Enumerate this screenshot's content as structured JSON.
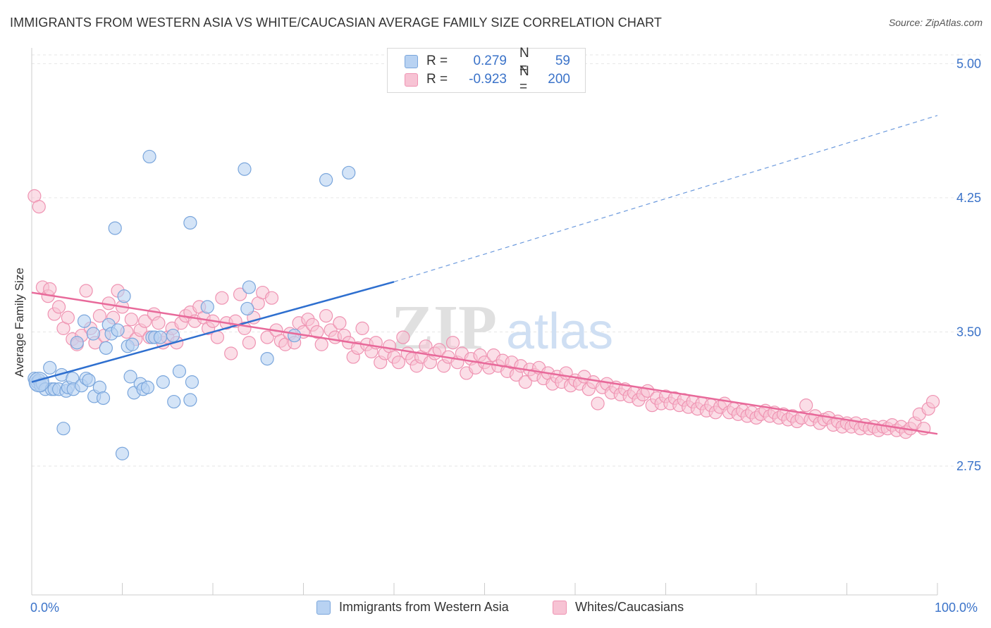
{
  "title": "IMMIGRANTS FROM WESTERN ASIA VS WHITE/CAUCASIAN AVERAGE FAMILY SIZE CORRELATION CHART",
  "source": "Source: ZipAtlas.com",
  "watermark": {
    "zip": "ZIP",
    "atlas": "atlas"
  },
  "legend": {
    "rows": [
      {
        "r_label": "R =",
        "r_value": "0.279",
        "n_label": "N =",
        "n_value": "59"
      },
      {
        "r_label": "R =",
        "r_value": "-0.923",
        "n_label": "N =",
        "n_value": "200"
      }
    ]
  },
  "colors": {
    "blue_fill": "#b8d2f2",
    "blue_stroke": "#7aa6dc",
    "blue_line": "#2e6fcf",
    "pink_fill": "#f7c3d4",
    "pink_stroke": "#ef93b2",
    "pink_line": "#e8699a",
    "tick_text": "#3b73c9",
    "grid": "#e6e6e6"
  },
  "chart_data": {
    "type": "scatter",
    "title": "IMMIGRANTS FROM WESTERN ASIA VS WHITE/CAUCASIAN AVERAGE FAMILY SIZE CORRELATION CHART",
    "xlabel": "",
    "ylabel": "Average Family Size",
    "x_tick_labels": [
      "0.0%",
      "100.0%"
    ],
    "y_ticks": [
      5.0,
      4.25,
      3.5,
      2.75
    ],
    "y_tick_labels": [
      "5.00",
      "4.25",
      "3.50",
      "2.75"
    ],
    "xlim": [
      0,
      100
    ],
    "ylim": [
      2.03,
      5.08
    ],
    "grid": true,
    "legend_position": "top-center",
    "series": [
      {
        "name": "Immigrants from Western Asia",
        "r": 0.279,
        "n": 59,
        "trend": {
          "x0": 0,
          "y0": 3.22,
          "x1": 40,
          "y1": 3.78,
          "dashed_to_x": 100,
          "dashed_to_y": 4.71
        },
        "points": [
          [
            0.3,
            3.24
          ],
          [
            0.5,
            3.21
          ],
          [
            0.6,
            3.22
          ],
          [
            0.8,
            3.23
          ],
          [
            1.0,
            3.2
          ],
          [
            1.2,
            3.21
          ],
          [
            1.5,
            3.18
          ],
          [
            2.0,
            3.3
          ],
          [
            2.2,
            3.18
          ],
          [
            2.5,
            3.18
          ],
          [
            3.0,
            3.18
          ],
          [
            3.3,
            3.26
          ],
          [
            3.8,
            3.17
          ],
          [
            4.0,
            3.19
          ],
          [
            4.5,
            3.24
          ],
          [
            4.6,
            3.18
          ],
          [
            5.0,
            3.44
          ],
          [
            5.5,
            3.2
          ],
          [
            5.8,
            3.56
          ],
          [
            6.0,
            3.24
          ],
          [
            6.3,
            3.23
          ],
          [
            6.8,
            3.49
          ],
          [
            6.9,
            3.14
          ],
          [
            7.5,
            3.19
          ],
          [
            7.9,
            3.13
          ],
          [
            8.2,
            3.41
          ],
          [
            8.5,
            3.54
          ],
          [
            8.8,
            3.49
          ],
          [
            9.2,
            4.08
          ],
          [
            9.5,
            3.51
          ],
          [
            10.2,
            3.7
          ],
          [
            10.6,
            3.42
          ],
          [
            10.9,
            3.25
          ],
          [
            11.1,
            3.43
          ],
          [
            11.3,
            3.16
          ],
          [
            12.0,
            3.21
          ],
          [
            12.3,
            3.18
          ],
          [
            12.8,
            3.19
          ],
          [
            13.3,
            3.47
          ],
          [
            13.6,
            3.47
          ],
          [
            14.2,
            3.47
          ],
          [
            14.5,
            3.22
          ],
          [
            15.6,
            3.48
          ],
          [
            15.7,
            3.11
          ],
          [
            16.3,
            3.28
          ],
          [
            17.5,
            3.12
          ],
          [
            17.7,
            3.22
          ],
          [
            19.4,
            3.64
          ],
          [
            23.5,
            4.41
          ],
          [
            24.0,
            3.75
          ],
          [
            23.8,
            3.63
          ],
          [
            26.0,
            3.35
          ],
          [
            29.0,
            3.48
          ],
          [
            32.5,
            4.35
          ],
          [
            35.0,
            4.39
          ],
          [
            3.5,
            2.96
          ],
          [
            10.0,
            2.82
          ],
          [
            13.0,
            4.48
          ],
          [
            17.5,
            4.11
          ]
        ]
      },
      {
        "name": "Whites/Caucasians",
        "r": -0.923,
        "n": 200,
        "trend": {
          "x0": 0,
          "y0": 3.72,
          "x1": 100,
          "y1": 2.93
        },
        "points": [
          [
            0.3,
            4.26
          ],
          [
            0.8,
            4.2
          ],
          [
            1.2,
            3.75
          ],
          [
            1.8,
            3.7
          ],
          [
            2.0,
            3.74
          ],
          [
            2.5,
            3.6
          ],
          [
            3.0,
            3.64
          ],
          [
            3.5,
            3.52
          ],
          [
            4.0,
            3.58
          ],
          [
            4.5,
            3.46
          ],
          [
            5.0,
            3.43
          ],
          [
            5.5,
            3.48
          ],
          [
            6.0,
            3.73
          ],
          [
            6.5,
            3.52
          ],
          [
            7.0,
            3.44
          ],
          [
            7.5,
            3.59
          ],
          [
            8.0,
            3.48
          ],
          [
            8.5,
            3.66
          ],
          [
            9.0,
            3.58
          ],
          [
            9.5,
            3.73
          ],
          [
            10.0,
            3.64
          ],
          [
            10.5,
            3.5
          ],
          [
            11.0,
            3.57
          ],
          [
            11.5,
            3.46
          ],
          [
            12.0,
            3.51
          ],
          [
            12.5,
            3.56
          ],
          [
            13.0,
            3.47
          ],
          [
            13.5,
            3.6
          ],
          [
            14.0,
            3.55
          ],
          [
            14.5,
            3.44
          ],
          [
            15.0,
            3.47
          ],
          [
            15.5,
            3.52
          ],
          [
            16.0,
            3.44
          ],
          [
            16.5,
            3.55
          ],
          [
            17.0,
            3.59
          ],
          [
            17.5,
            3.61
          ],
          [
            18.0,
            3.56
          ],
          [
            18.5,
            3.64
          ],
          [
            19.0,
            3.58
          ],
          [
            19.5,
            3.52
          ],
          [
            20.0,
            3.56
          ],
          [
            20.5,
            3.47
          ],
          [
            21.0,
            3.69
          ],
          [
            21.5,
            3.55
          ],
          [
            22.0,
            3.38
          ],
          [
            22.5,
            3.56
          ],
          [
            23.0,
            3.71
          ],
          [
            23.5,
            3.52
          ],
          [
            24.0,
            3.44
          ],
          [
            24.5,
            3.58
          ],
          [
            25.0,
            3.66
          ],
          [
            25.5,
            3.72
          ],
          [
            26.0,
            3.47
          ],
          [
            26.5,
            3.69
          ],
          [
            27.0,
            3.51
          ],
          [
            27.5,
            3.45
          ],
          [
            28.0,
            3.43
          ],
          [
            28.5,
            3.49
          ],
          [
            29.0,
            3.44
          ],
          [
            29.5,
            3.55
          ],
          [
            30.0,
            3.5
          ],
          [
            30.5,
            3.57
          ],
          [
            31.0,
            3.54
          ],
          [
            31.5,
            3.5
          ],
          [
            32.0,
            3.43
          ],
          [
            32.5,
            3.59
          ],
          [
            33.0,
            3.51
          ],
          [
            33.5,
            3.47
          ],
          [
            34.0,
            3.55
          ],
          [
            34.5,
            3.48
          ],
          [
            35.0,
            3.44
          ],
          [
            35.5,
            3.36
          ],
          [
            36.0,
            3.41
          ],
          [
            36.5,
            3.52
          ],
          [
            37.0,
            3.43
          ],
          [
            37.5,
            3.39
          ],
          [
            38.0,
            3.44
          ],
          [
            38.5,
            3.33
          ],
          [
            39.0,
            3.38
          ],
          [
            39.5,
            3.42
          ],
          [
            40.0,
            3.36
          ],
          [
            40.5,
            3.33
          ],
          [
            41.0,
            3.47
          ],
          [
            41.5,
            3.38
          ],
          [
            42.0,
            3.35
          ],
          [
            42.5,
            3.31
          ],
          [
            43.0,
            3.36
          ],
          [
            43.5,
            3.42
          ],
          [
            44.0,
            3.33
          ],
          [
            44.5,
            3.38
          ],
          [
            45.0,
            3.4
          ],
          [
            45.5,
            3.31
          ],
          [
            46.0,
            3.36
          ],
          [
            46.5,
            3.44
          ],
          [
            47.0,
            3.33
          ],
          [
            47.5,
            3.38
          ],
          [
            48.0,
            3.27
          ],
          [
            48.5,
            3.35
          ],
          [
            49.0,
            3.3
          ],
          [
            49.5,
            3.37
          ],
          [
            50.0,
            3.33
          ],
          [
            50.5,
            3.3
          ],
          [
            51.0,
            3.37
          ],
          [
            51.5,
            3.31
          ],
          [
            52.0,
            3.34
          ],
          [
            52.5,
            3.28
          ],
          [
            53.0,
            3.33
          ],
          [
            53.5,
            3.26
          ],
          [
            54.0,
            3.31
          ],
          [
            54.5,
            3.22
          ],
          [
            55.0,
            3.29
          ],
          [
            55.5,
            3.26
          ],
          [
            56.0,
            3.3
          ],
          [
            56.5,
            3.24
          ],
          [
            57.0,
            3.27
          ],
          [
            57.5,
            3.21
          ],
          [
            58.0,
            3.25
          ],
          [
            58.5,
            3.22
          ],
          [
            59.0,
            3.27
          ],
          [
            59.5,
            3.2
          ],
          [
            60.0,
            3.23
          ],
          [
            60.5,
            3.21
          ],
          [
            61.0,
            3.25
          ],
          [
            61.5,
            3.18
          ],
          [
            62.0,
            3.22
          ],
          [
            62.5,
            3.1
          ],
          [
            63.0,
            3.19
          ],
          [
            63.5,
            3.21
          ],
          [
            64.0,
            3.16
          ],
          [
            64.5,
            3.19
          ],
          [
            65.0,
            3.15
          ],
          [
            65.5,
            3.18
          ],
          [
            66.0,
            3.14
          ],
          [
            66.5,
            3.16
          ],
          [
            67.0,
            3.12
          ],
          [
            67.5,
            3.15
          ],
          [
            68.0,
            3.17
          ],
          [
            68.5,
            3.09
          ],
          [
            69.0,
            3.13
          ],
          [
            69.5,
            3.1
          ],
          [
            70.0,
            3.14
          ],
          [
            70.5,
            3.1
          ],
          [
            71.0,
            3.13
          ],
          [
            71.5,
            3.09
          ],
          [
            72.0,
            3.12
          ],
          [
            72.5,
            3.08
          ],
          [
            73.0,
            3.11
          ],
          [
            73.5,
            3.07
          ],
          [
            74.0,
            3.1
          ],
          [
            74.5,
            3.06
          ],
          [
            75.0,
            3.09
          ],
          [
            75.5,
            3.05
          ],
          [
            76.0,
            3.08
          ],
          [
            76.5,
            3.1
          ],
          [
            77.0,
            3.05
          ],
          [
            77.5,
            3.07
          ],
          [
            78.0,
            3.04
          ],
          [
            78.5,
            3.06
          ],
          [
            79.0,
            3.03
          ],
          [
            79.5,
            3.05
          ],
          [
            80.0,
            3.02
          ],
          [
            80.5,
            3.04
          ],
          [
            81.0,
            3.06
          ],
          [
            81.5,
            3.03
          ],
          [
            82.0,
            3.05
          ],
          [
            82.5,
            3.02
          ],
          [
            83.0,
            3.04
          ],
          [
            83.5,
            3.01
          ],
          [
            84.0,
            3.03
          ],
          [
            84.5,
            3.0
          ],
          [
            85.0,
            3.02
          ],
          [
            85.5,
            3.09
          ],
          [
            86.0,
            3.01
          ],
          [
            86.5,
            3.03
          ],
          [
            87.0,
            2.99
          ],
          [
            87.5,
            3.01
          ],
          [
            88.0,
            3.02
          ],
          [
            88.5,
            2.98
          ],
          [
            89.0,
            3.0
          ],
          [
            89.5,
            2.97
          ],
          [
            90.0,
            2.99
          ],
          [
            90.5,
            2.97
          ],
          [
            91.0,
            2.99
          ],
          [
            91.5,
            2.96
          ],
          [
            92.0,
            2.98
          ],
          [
            92.5,
            2.96
          ],
          [
            93.0,
            2.97
          ],
          [
            93.5,
            2.95
          ],
          [
            94.0,
            2.97
          ],
          [
            94.5,
            2.96
          ],
          [
            95.0,
            2.98
          ],
          [
            95.5,
            2.95
          ],
          [
            96.0,
            2.97
          ],
          [
            96.5,
            2.94
          ],
          [
            97.0,
            2.96
          ],
          [
            97.5,
            2.99
          ],
          [
            98.0,
            3.04
          ],
          [
            98.5,
            2.96
          ],
          [
            99.0,
            3.07
          ],
          [
            99.5,
            3.11
          ]
        ]
      }
    ]
  },
  "bottom_legend": [
    "Immigrants from Western Asia",
    "Whites/Caucasians"
  ]
}
